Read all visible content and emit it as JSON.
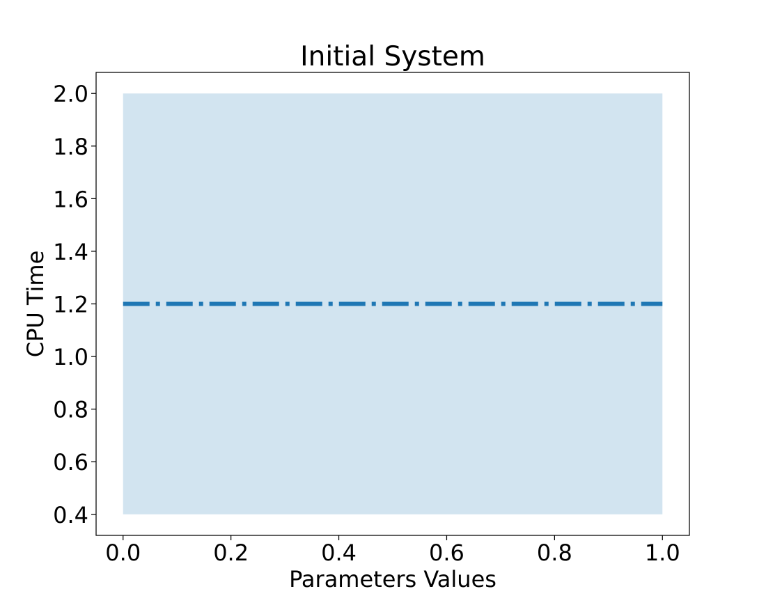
{
  "chart_data": {
    "type": "line",
    "title": "Initial System",
    "xlabel": "Parameters Values",
    "ylabel": "CPU Time",
    "xlim": [
      -0.05,
      1.05
    ],
    "ylim": [
      0.32,
      2.08
    ],
    "xticks": [
      0.0,
      0.2,
      0.4,
      0.6,
      0.8,
      1.0
    ],
    "xtick_labels": [
      "0.0",
      "0.2",
      "0.4",
      "0.6",
      "0.8",
      "1.0"
    ],
    "yticks": [
      0.4,
      0.6,
      0.8,
      1.0,
      1.2,
      1.4,
      1.6,
      1.8,
      2.0
    ],
    "ytick_labels": [
      "0.4",
      "0.6",
      "0.8",
      "1.0",
      "1.2",
      "1.4",
      "1.6",
      "1.8",
      "2.0"
    ],
    "grid": false,
    "legend": null,
    "series": [
      {
        "x": [
          0.0,
          1.0
        ],
        "y": [
          1.2,
          1.2
        ],
        "line_style": "dash-dot",
        "color": "#1f77b4"
      }
    ],
    "bands": [
      {
        "x": [
          0.0,
          1.0
        ],
        "y_low": [
          0.4,
          0.4
        ],
        "y_high": [
          2.0,
          2.0
        ],
        "color": "#1f77b4",
        "opacity": 0.2
      }
    ]
  }
}
